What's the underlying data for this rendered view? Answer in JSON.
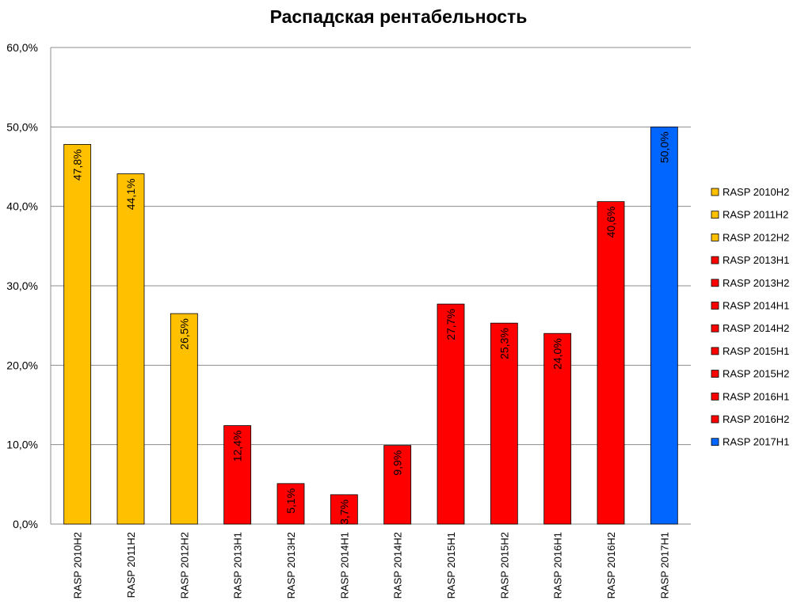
{
  "chart_data": {
    "type": "bar",
    "title": "Распадская рентабельность",
    "xlabel": "",
    "ylabel": "",
    "ylim": [
      0,
      60
    ],
    "yticks": [
      "0,0%",
      "10,0%",
      "20,0%",
      "30,0%",
      "40,0%",
      "50,0%",
      "60,0%"
    ],
    "grid": true,
    "legend_position": "right",
    "categories": [
      "RASP 2010H2",
      "RASP 2011H2",
      "RASP 2012H2",
      "RASP 2013H1",
      "RASP 2013H2",
      "RASP 2014H1",
      "RASP 2014H2",
      "RASP 2015H1",
      "RASP 2015H2",
      "RASP 2016H1",
      "RASP 2016H2",
      "RASP 2017H1"
    ],
    "values": [
      47.8,
      44.1,
      26.5,
      12.4,
      5.1,
      3.7,
      9.9,
      27.7,
      25.3,
      24.0,
      40.6,
      50.0
    ],
    "value_labels": [
      "47,8%",
      "44,1%",
      "26,5%",
      "12,4%",
      "5,1%",
      "3,7%",
      "9,9%",
      "27,7%",
      "25,3%",
      "24,0%",
      "40,6%",
      "50,0%"
    ],
    "colors": [
      "#ffc000",
      "#ffc000",
      "#ffc000",
      "#ff0000",
      "#ff0000",
      "#ff0000",
      "#ff0000",
      "#ff0000",
      "#ff0000",
      "#ff0000",
      "#ff0000",
      "#0066ff"
    ],
    "legend": [
      "RASP 2010H2",
      "RASP 2011H2",
      "RASP 2012H2",
      "RASP 2013H1",
      "RASP 2013H2",
      "RASP 2014H1",
      "RASP 2014H2",
      "RASP 2015H1",
      "RASP 2015H2",
      "RASP 2016H1",
      "RASP 2016H2",
      "RASP 2017H1"
    ]
  }
}
